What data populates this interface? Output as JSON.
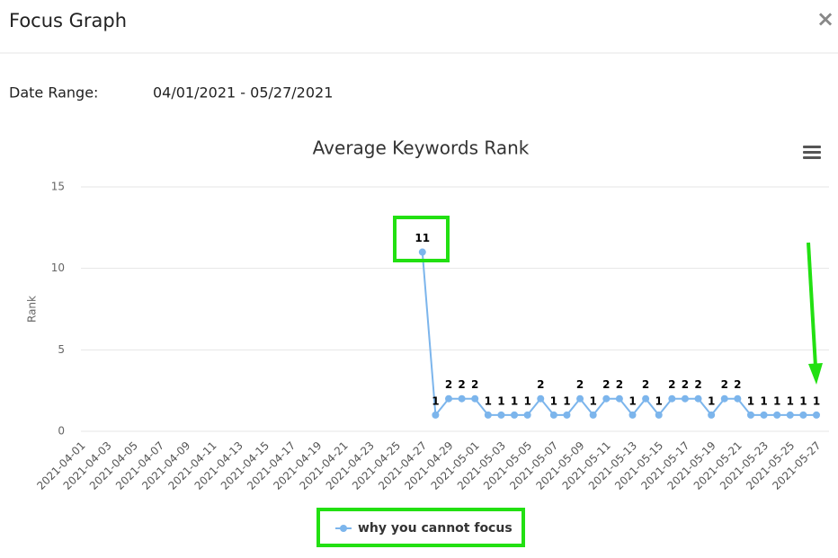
{
  "header": {
    "title": "Focus Graph",
    "close": "×"
  },
  "date_range": {
    "label": "Date Range:",
    "value": "04/01/2021 - 05/27/2021"
  },
  "chart_data": {
    "type": "line",
    "title": "Average Keywords Rank",
    "y_label": "Rank",
    "categories": [
      "2021-04-01",
      null,
      "2021-04-03",
      null,
      "2021-04-05",
      null,
      "2021-04-07",
      null,
      "2021-04-09",
      null,
      "2021-04-11",
      null,
      "2021-04-13",
      null,
      "2021-04-15",
      null,
      "2021-04-17",
      null,
      "2021-04-19",
      null,
      "2021-04-21",
      null,
      "2021-04-23",
      null,
      "2021-04-25",
      null,
      "2021-04-27",
      null,
      "2021-04-29",
      null,
      "2021-05-01",
      null,
      "2021-05-03",
      null,
      "2021-05-05",
      null,
      "2021-05-07",
      null,
      "2021-05-09",
      null,
      "2021-05-11",
      null,
      "2021-05-13",
      null,
      "2021-05-15",
      null,
      "2021-05-17",
      null,
      "2021-05-19",
      null,
      "2021-05-21",
      null,
      "2021-05-23",
      null,
      "2021-05-25",
      null,
      "2021-05-27"
    ],
    "series": [
      {
        "name": "why you cannot focus",
        "color": "#7cb5ec",
        "values": [
          null,
          null,
          null,
          null,
          null,
          null,
          null,
          null,
          null,
          null,
          null,
          null,
          null,
          null,
          null,
          null,
          null,
          null,
          null,
          null,
          null,
          null,
          null,
          null,
          null,
          null,
          11,
          1,
          2,
          2,
          2,
          1,
          1,
          1,
          1,
          2,
          1,
          1,
          2,
          1,
          2,
          2,
          1,
          2,
          1,
          2,
          2,
          2,
          1,
          2,
          2,
          1,
          1,
          1,
          1,
          1,
          1
        ]
      }
    ],
    "ylim": [
      0,
      15
    ],
    "yticks": [
      0,
      5,
      10,
      15
    ],
    "grid": true,
    "data_labels": true
  }
}
